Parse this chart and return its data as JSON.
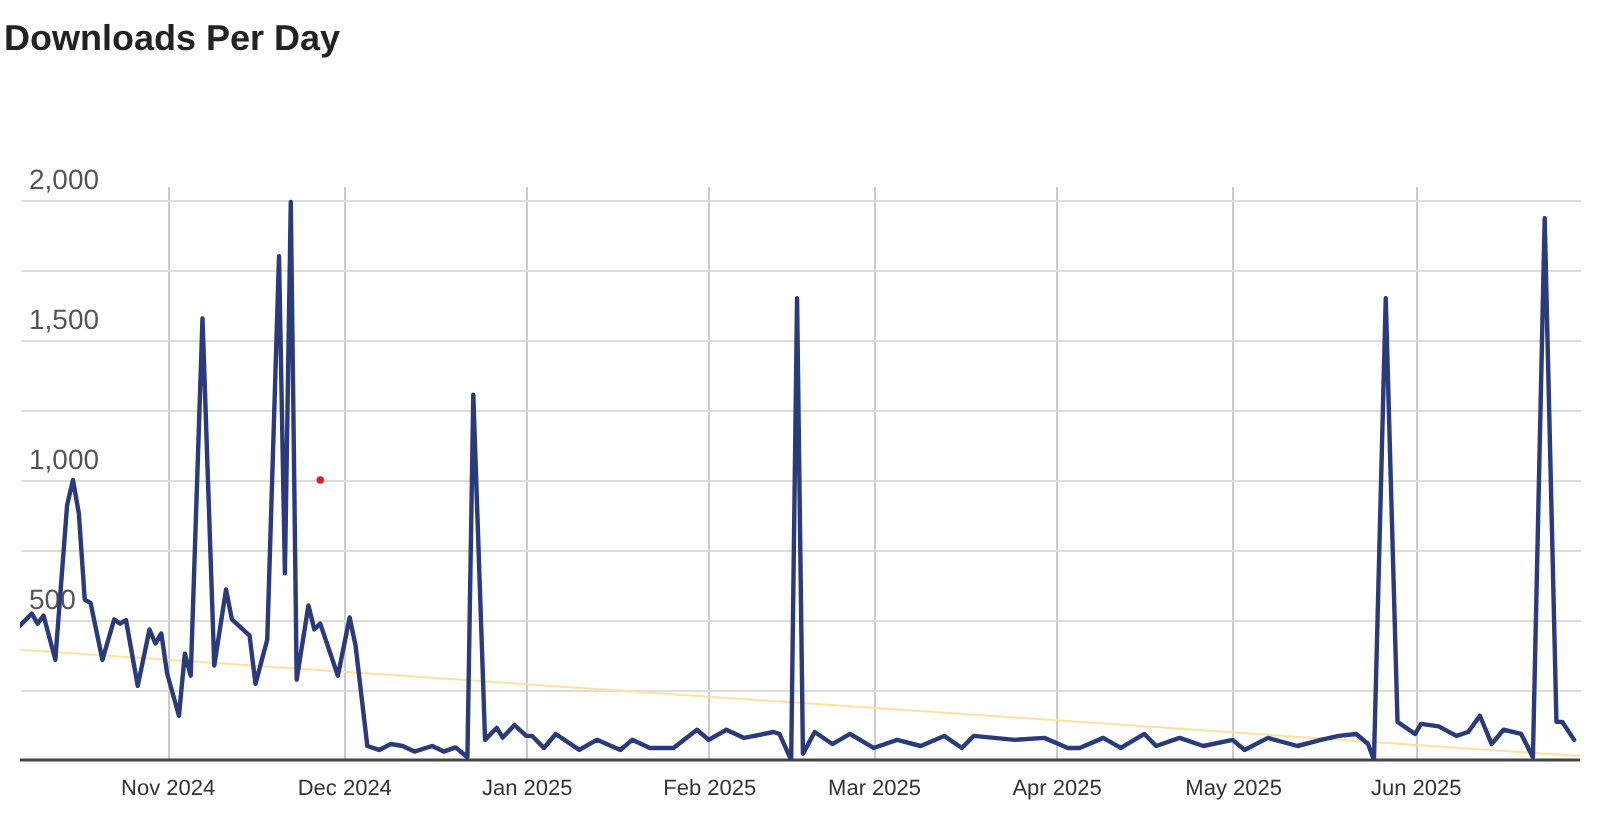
{
  "chart_data": {
    "type": "line",
    "title": "Downloads Per Day",
    "xlim": [
      "2024-10-07",
      "2025-06-29"
    ],
    "xticks": [
      {
        "value": "2024-11-01",
        "label": "Nov 2024"
      },
      {
        "value": "2024-12-01",
        "label": "Dec 2024"
      },
      {
        "value": "2025-01-01",
        "label": "Jan 2025"
      },
      {
        "value": "2025-02-01",
        "label": "Feb 2025"
      },
      {
        "value": "2025-03-01",
        "label": "Mar 2025"
      },
      {
        "value": "2025-04-01",
        "label": "Apr 2025"
      },
      {
        "value": "2025-05-01",
        "label": "May 2025"
      },
      {
        "value": "2025-06-01",
        "label": "Jun 2025"
      }
    ],
    "ylim": [
      0,
      2050
    ],
    "yticks": [
      {
        "value": 250,
        "label": null
      },
      {
        "value": 500,
        "label": "500"
      },
      {
        "value": 750,
        "label": null
      },
      {
        "value": 1000,
        "label": "1,000"
      },
      {
        "value": 1250,
        "label": null
      },
      {
        "value": 1500,
        "label": "1,500"
      },
      {
        "value": 1750,
        "label": null
      },
      {
        "value": 2000,
        "label": "2,000"
      }
    ],
    "grid": true,
    "series": [
      {
        "type": "line",
        "color": "#2a3a7a",
        "x": [
          "2024-10-07",
          "2024-10-09",
          "2024-10-10",
          "2024-10-11",
          "2024-10-13",
          "2024-10-15",
          "2024-10-16",
          "2024-10-17",
          "2024-10-18",
          "2024-10-19",
          "2024-10-21",
          "2024-10-23",
          "2024-10-24",
          "2024-10-25",
          "2024-10-27",
          "2024-10-29",
          "2024-10-30",
          "2024-10-31",
          "2024-11-01",
          "2024-11-03",
          "2024-11-04",
          "2024-11-05",
          "2024-11-07",
          "2024-11-09",
          "2024-11-11",
          "2024-11-12",
          "2024-11-15",
          "2024-11-16",
          "2024-11-18",
          "2024-11-20",
          "2024-11-21",
          "2024-11-22",
          "2024-11-23",
          "2024-11-25",
          "2024-11-26",
          "2024-11-27",
          "2024-11-30",
          "2024-12-02",
          "2024-12-03",
          "2024-12-05",
          "2024-12-07",
          "2024-12-09",
          "2024-12-11",
          "2024-12-13",
          "2024-12-16",
          "2024-12-18",
          "2024-12-20",
          "2024-12-22",
          "2024-12-23",
          "2024-12-25",
          "2024-12-27",
          "2024-12-28",
          "2024-12-30",
          "2025-01-01",
          "2025-01-02",
          "2025-01-04",
          "2025-01-06",
          "2025-01-10",
          "2025-01-13",
          "2025-01-17",
          "2025-01-19",
          "2025-01-22",
          "2025-01-26",
          "2025-01-30",
          "2025-02-01",
          "2025-02-04",
          "2025-02-07",
          "2025-02-12",
          "2025-02-13",
          "2025-02-15",
          "2025-02-16",
          "2025-02-17",
          "2025-02-19",
          "2025-02-22",
          "2025-02-25",
          "2025-03-01",
          "2025-03-05",
          "2025-03-09",
          "2025-03-13",
          "2025-03-16",
          "2025-03-18",
          "2025-03-25",
          "2025-03-30",
          "2025-04-03",
          "2025-04-05",
          "2025-04-09",
          "2025-04-12",
          "2025-04-16",
          "2025-04-18",
          "2025-04-22",
          "2025-04-26",
          "2025-05-01",
          "2025-05-03",
          "2025-05-07",
          "2025-05-12",
          "2025-05-16",
          "2025-05-19",
          "2025-05-22",
          "2025-05-24",
          "2025-05-25",
          "2025-05-27",
          "2025-05-29",
          "2025-06-01",
          "2025-06-02",
          "2025-06-05",
          "2025-06-08",
          "2025-06-10",
          "2025-06-12",
          "2025-06-14",
          "2025-06-16",
          "2025-06-19",
          "2025-06-21",
          "2025-06-23",
          "2025-06-25",
          "2025-06-26",
          "2025-06-28"
        ],
        "values": [
          480,
          523,
          487,
          516,
          358,
          910,
          1000,
          880,
          573,
          560,
          358,
          502,
          487,
          500,
          265,
          466,
          416,
          452,
          308,
          158,
          380,
          301,
          1577,
          337,
          609,
          502,
          444,
          272,
          430,
          1799,
          667,
          1993,
          287,
          552,
          466,
          487,
          301,
          509,
          409,
          50,
          36,
          57,
          50,
          30,
          50,
          30,
          45,
          10,
          1305,
          72,
          115,
          80,
          125,
          86,
          86,
          43,
          93,
          36,
          72,
          36,
          72,
          43,
          43,
          108,
          72,
          108,
          79,
          100,
          93,
          0,
          1649,
          22,
          100,
          57,
          93,
          43,
          72,
          50,
          86,
          43,
          86,
          72,
          79,
          43,
          43,
          79,
          43,
          93,
          50,
          79,
          50,
          72,
          36,
          79,
          50,
          72,
          86,
          93,
          57,
          0,
          1649,
          136,
          93,
          129,
          120,
          86,
          100,
          158,
          57,
          108,
          93,
          10,
          1935,
          136,
          136,
          72
        ]
      },
      {
        "type": "line",
        "color": "#ffe0a0",
        "x": [
          "2024-10-07",
          "2025-06-29"
        ],
        "values": [
          394,
          14
        ]
      },
      {
        "type": "scatter",
        "color": "#e02020",
        "x": [
          "2024-11-27"
        ],
        "values": [
          1000
        ]
      }
    ]
  }
}
